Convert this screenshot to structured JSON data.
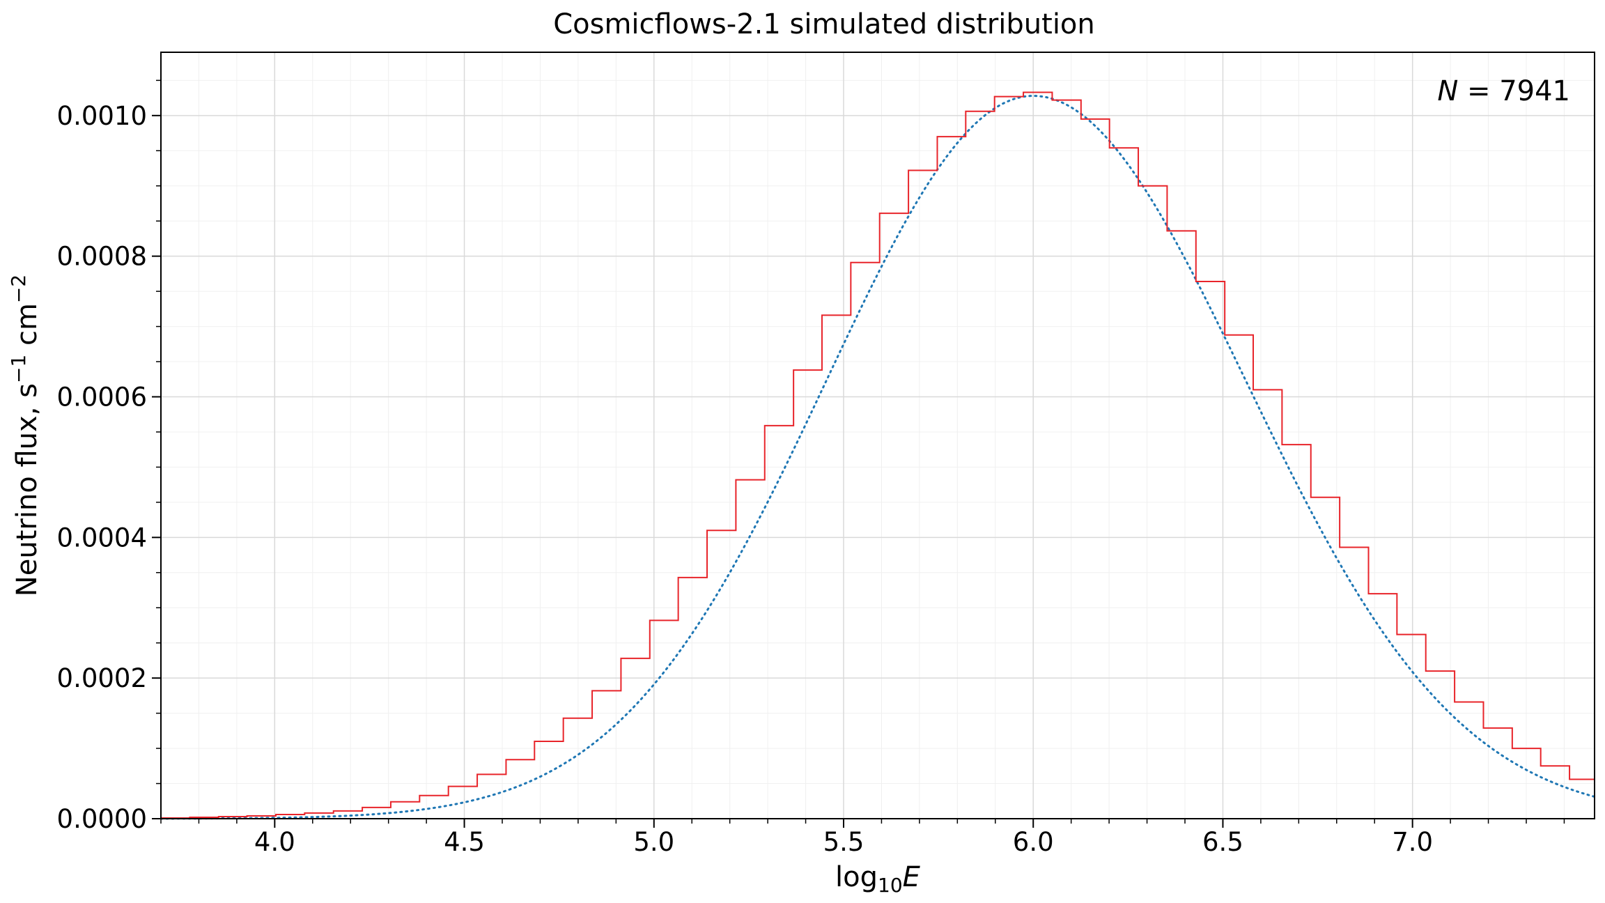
{
  "chart_data": {
    "type": "histogram",
    "title": "Cosmicflows-2.1 simulated distribution",
    "xlabel_main": "log",
    "xlabel_sub": "10",
    "xlabel_var": "E",
    "ylabel_main": "Neutrino flux, s",
    "ylabel_exp1": "−1",
    "ylabel_mid": " cm",
    "ylabel_exp2": "−2",
    "annotation_var": "N",
    "annotation_eq": " = 7941",
    "xlim": [
      3.7,
      7.48
    ],
    "ylim": [
      0,
      0.00109
    ],
    "xticks": [
      "4.0",
      "4.5",
      "5.0",
      "5.5",
      "6.0",
      "6.5",
      "7.0"
    ],
    "yticks": [
      "0.0000",
      "0.0002",
      "0.0004",
      "0.0006",
      "0.0008",
      "0.0010"
    ],
    "grid": true,
    "bin_edges": [
      3.7,
      3.776,
      3.852,
      3.927,
      4.003,
      4.079,
      4.155,
      4.231,
      4.306,
      4.382,
      4.458,
      4.534,
      4.61,
      4.685,
      4.761,
      4.837,
      4.913,
      4.989,
      5.064,
      5.14,
      5.216,
      5.292,
      5.368,
      5.443,
      5.519,
      5.595,
      5.671,
      5.747,
      5.822,
      5.898,
      5.974,
      6.05,
      6.126,
      6.201,
      6.277,
      6.353,
      6.429,
      6.505,
      6.58,
      6.656,
      6.732,
      6.808,
      6.884,
      6.959,
      7.035,
      7.111,
      7.187,
      7.263,
      7.338,
      7.414,
      7.48
    ],
    "histogram_values": [
      1e-06,
      2e-06,
      3e-06,
      4e-06,
      6e-06,
      8e-06,
      1.1e-05,
      1.6e-05,
      2.4e-05,
      3.3e-05,
      4.6e-05,
      6.3e-05,
      8.4e-05,
      0.00011,
      0.000143,
      0.000182,
      0.000228,
      0.000282,
      0.000343,
      0.00041,
      0.000482,
      0.000559,
      0.000638,
      0.000716,
      0.000791,
      0.000861,
      0.000922,
      0.00097,
      0.001006,
      0.001027,
      0.001033,
      0.001022,
      0.000995,
      0.000954,
      0.0009,
      0.000836,
      0.000764,
      0.000688,
      0.00061,
      0.000532,
      0.000457,
      0.000386,
      0.00032,
      0.000262,
      0.00021,
      0.000166,
      0.000129,
      0.0001,
      7.5e-05,
      5.6e-05
    ],
    "series": [
      {
        "name": "histogram",
        "type": "step",
        "color": "#e8242a"
      },
      {
        "name": "model",
        "type": "dotted-line",
        "color": "#1f77b4",
        "peak_x": 6.0,
        "peak_y": 0.001028,
        "sigma_left": 0.545,
        "sigma_right": 0.56
      }
    ]
  }
}
